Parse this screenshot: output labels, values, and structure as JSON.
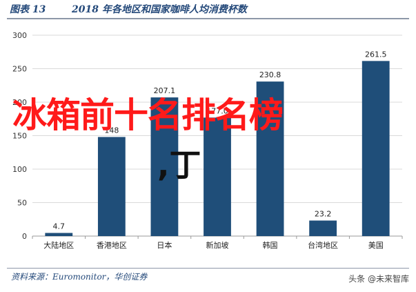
{
  "header": {
    "figure_label": "图表 13",
    "figure_title": "2018 年各地区和国家咖啡人均消费杯数"
  },
  "chart_data": {
    "type": "bar",
    "categories": [
      "大陆地区",
      "香港地区",
      "日本",
      "新加坡",
      "韩国",
      "台湾地区",
      "美国"
    ],
    "values": [
      4.7,
      148,
      207.1,
      177.0,
      230.8,
      23.2,
      261.5
    ],
    "value_labels": [
      "4.7",
      "148",
      "207.1",
      "177.0",
      "230.8",
      "23.2",
      "261.5"
    ],
    "ylim": [
      0,
      300
    ],
    "yticks": [
      0,
      50,
      100,
      150,
      200,
      250,
      300
    ],
    "grid": true,
    "bar_color": "#1f4e79",
    "title": "",
    "xlabel": "",
    "ylabel": ""
  },
  "footer": {
    "source": "资料来源：Euromonitor，华创证券",
    "watermark": "头条 @未来智库"
  },
  "overlay": {
    "main_text": "冰箱前十名排名榜",
    "sub_text": ",丁",
    "main_color": "#ff1a1a"
  }
}
